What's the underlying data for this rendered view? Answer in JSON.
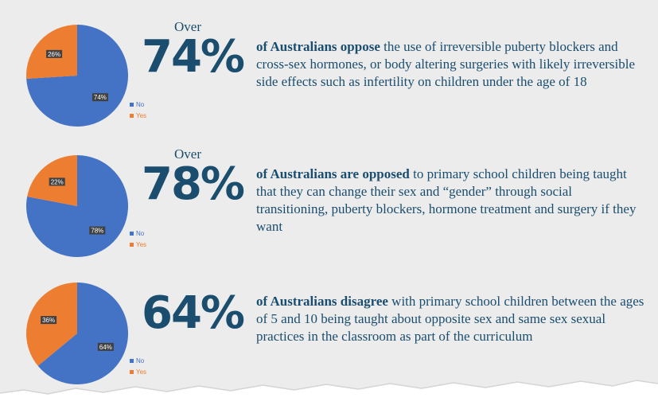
{
  "chart_data": [
    {
      "type": "pie",
      "categories": [
        "No",
        "Yes"
      ],
      "values": [
        74,
        26
      ],
      "labels": [
        "74%",
        "26%"
      ],
      "legend": [
        "No",
        "Yes"
      ],
      "colors": [
        "#4472c4",
        "#ed7d31"
      ]
    },
    {
      "type": "pie",
      "categories": [
        "No",
        "Yes"
      ],
      "values": [
        78,
        22
      ],
      "labels": [
        "78%",
        "22%"
      ],
      "legend": [
        "No",
        "Yes"
      ],
      "colors": [
        "#4472c4",
        "#ed7d31"
      ]
    },
    {
      "type": "pie",
      "categories": [
        "No",
        "Yes"
      ],
      "values": [
        64,
        36
      ],
      "labels": [
        "64%",
        "36%"
      ],
      "legend": [
        "No",
        "Yes"
      ],
      "colors": [
        "#4472c4",
        "#ed7d31"
      ]
    }
  ],
  "stats": [
    {
      "over": "Over",
      "big": "74%",
      "bold": "of Australians oppose",
      "rest": " the use of irreversible puberty blockers and cross-sex hormones, or body altering surgeries with likely irreversible side effects such as infertility on children under the age of 18"
    },
    {
      "over": "Over",
      "big": "78%",
      "bold": "of Australians are opposed",
      "rest": " to primary school children being taught that they can change their sex and “gender” through social transitioning, puberty blockers, hormone treatment and surgery if they want"
    },
    {
      "over": "",
      "big": "64%",
      "bold": "of Australians disagree",
      "rest": " with primary school children between the ages of 5 and 10 being taught about opposite sex and same sex sexual practices in the classroom as part of the curriculum"
    }
  ],
  "colors": {
    "text": "#1a4d6e",
    "no": "#4472c4",
    "yes": "#ed7d31",
    "background": "#ececec"
  }
}
